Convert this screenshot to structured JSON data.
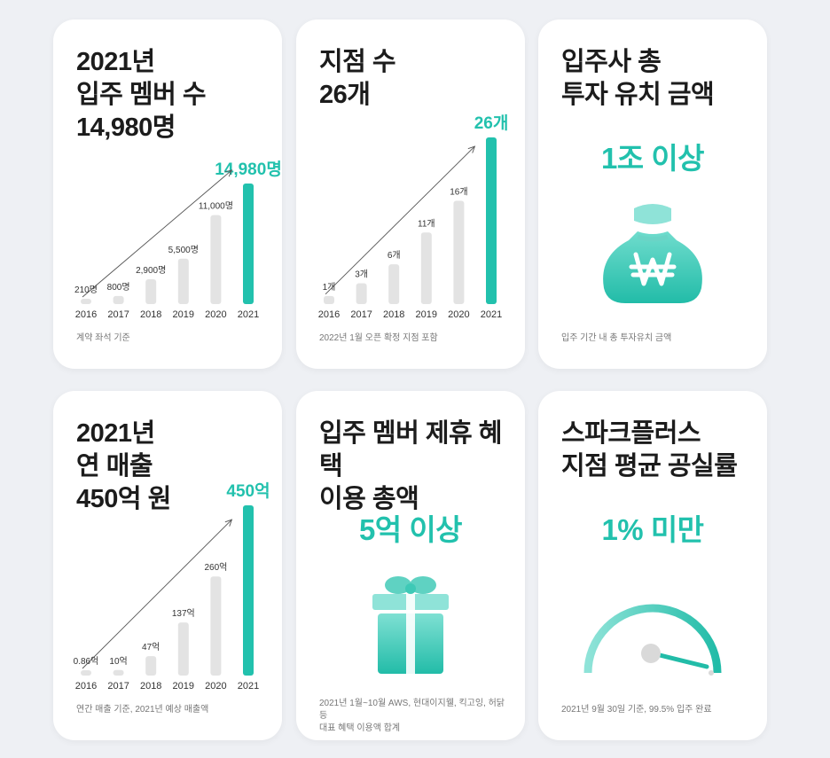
{
  "colors": {
    "accent": "#22c1ad",
    "bar": "#e3e3e3",
    "label": "#333333"
  },
  "cards": [
    {
      "title": "2021년\n입주 멤버 수\n14,980명",
      "note": "계약 좌석 기준"
    },
    {
      "title": "지점 수\n26개",
      "note": "2022년 1월 오픈 확정 지점 포함"
    },
    {
      "title": "입주사 총\n투자 유치 금액",
      "value": "1조 이상",
      "icon": "money-bag-icon",
      "note": "입주 기간 내 총 투자유치 금액"
    },
    {
      "title": "2021년\n연 매출\n450억 원",
      "note": "연간 매출 기준, 2021년 예상 매출액"
    },
    {
      "title": "입주 멤버 제휴 혜택\n이용 총액",
      "value": "5억 이상",
      "icon": "gift-box-icon",
      "note": "2021년 1월~10월 AWS, 현대이지웰, 킥고잉, 허닭 등\n대표 혜택 이용액 합계"
    },
    {
      "title": "스파크플러스\n지점 평균 공실률",
      "value": "1% 미만",
      "icon": "gauge-icon",
      "gauge_fraction": 0.99,
      "note": "2021년 9월 30일 기준, 99.5% 입주 완료"
    }
  ],
  "chart_data": [
    {
      "type": "bar",
      "categories": [
        "2016",
        "2017",
        "2018",
        "2019",
        "2020",
        "2021"
      ],
      "values": [
        210,
        800,
        2900,
        5500,
        11000,
        14980
      ],
      "labels": [
        "210명",
        "800명",
        "2,900명",
        "5,500명",
        "11,000명",
        "14,980명"
      ],
      "highlight_index": 5,
      "ylim": [
        0,
        14980
      ],
      "grid": false,
      "trend_arrow": true
    },
    {
      "type": "bar",
      "categories": [
        "2016",
        "2017",
        "2018",
        "2019",
        "2020",
        "2021"
      ],
      "values": [
        1,
        3,
        6,
        11,
        16,
        26
      ],
      "labels": [
        "1개",
        "3개",
        "6개",
        "11개",
        "16개",
        "26개"
      ],
      "highlight_index": 5,
      "ylim": [
        0,
        26
      ],
      "grid": false,
      "trend_arrow": true
    },
    {
      "type": "bar",
      "categories": [
        "2016",
        "2017",
        "2018",
        "2019",
        "2020",
        "2021"
      ],
      "values": [
        0.86,
        10,
        47,
        137,
        260,
        450
      ],
      "labels": [
        "0.86억",
        "10억",
        "47억",
        "137억",
        "260억",
        "450억"
      ],
      "highlight_index": 5,
      "ylim": [
        0,
        450
      ],
      "grid": false,
      "trend_arrow": true
    }
  ]
}
